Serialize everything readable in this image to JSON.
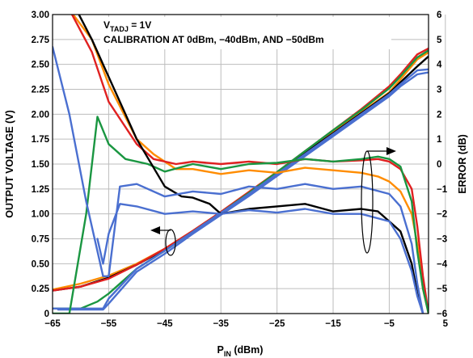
{
  "chart_data": {
    "type": "line",
    "annotation": {
      "line1_main": "V",
      "line1_sub": "TADJ",
      "line1_rest": " = 1V",
      "line2": "CALIBRATION AT 0dBm, −40dBm, AND −50dBm"
    },
    "xlabel_main": "P",
    "xlabel_sub": "IN",
    "xlabel_rest": " (dBm)",
    "ylabel": "OUTPUT VOLTAGE (V)",
    "y2label": "ERROR (dB)",
    "xlim": [
      -65,
      2
    ],
    "ylim": [
      0,
      3
    ],
    "y2lim": [
      -6,
      6
    ],
    "grid": true,
    "x_ticks": [
      -65,
      -55,
      -45,
      -35,
      -25,
      -15,
      -5,
      5
    ],
    "x_tick_labels": [
      "−65",
      "−55",
      "−45",
      "−35",
      "−25",
      "−15",
      "−5",
      "5"
    ],
    "y_ticks": [
      0,
      0.25,
      0.5,
      0.75,
      1.0,
      1.25,
      1.5,
      1.75,
      2.0,
      2.25,
      2.5,
      2.75,
      3.0
    ],
    "y_tick_labels": [
      "0",
      "0.25",
      "0.50",
      "0.75",
      "1.00",
      "1.25",
      "1.50",
      "1.75",
      "2.00",
      "2.25",
      "2.50",
      "2.75",
      "3.00"
    ],
    "y2_ticks": [
      -6,
      -5,
      -4,
      -3,
      -2,
      -1,
      0,
      1,
      2,
      3,
      4,
      5,
      6
    ],
    "y2_tick_labels": [
      "−6",
      "−5",
      "−4",
      "−3",
      "−2",
      "−1",
      "0",
      "1",
      "2",
      "3",
      "4",
      "5",
      "6"
    ],
    "series": [
      {
        "color": "#ff8c00",
        "axis": "left",
        "x": [
          -65,
          -60,
          -55,
          -50,
          -45,
          -40,
          -35,
          -30,
          -25,
          -20,
          -15,
          -10,
          -5,
          -3,
          0,
          2
        ],
        "y": [
          0.24,
          0.3,
          0.38,
          0.5,
          0.65,
          0.83,
          1.02,
          1.22,
          1.42,
          1.62,
          1.82,
          2.02,
          2.22,
          2.35,
          2.55,
          2.62
        ]
      },
      {
        "color": "#000000",
        "axis": "left",
        "x": [
          -65,
          -60,
          -55,
          -50,
          -45,
          -40,
          -35,
          -30,
          -25,
          -20,
          -15,
          -10,
          -5,
          -3,
          0,
          2
        ],
        "y": [
          0.23,
          0.27,
          0.36,
          0.49,
          0.64,
          0.82,
          1.01,
          1.21,
          1.41,
          1.61,
          1.81,
          2.01,
          2.21,
          2.32,
          2.48,
          2.58
        ]
      },
      {
        "color": "#e02020",
        "axis": "left",
        "x": [
          -65,
          -60,
          -55,
          -50,
          -45,
          -40,
          -35,
          -30,
          -25,
          -20,
          -15,
          -10,
          -5,
          -3,
          0,
          2
        ],
        "y": [
          0.23,
          0.27,
          0.35,
          0.49,
          0.65,
          0.83,
          1.02,
          1.22,
          1.42,
          1.63,
          1.84,
          2.05,
          2.28,
          2.4,
          2.6,
          2.66
        ]
      },
      {
        "color": "#1a9641",
        "axis": "left",
        "x": [
          -65,
          -60,
          -57,
          -55,
          -50,
          -45,
          -40,
          -35,
          -30,
          -25,
          -20,
          -15,
          -10,
          -5,
          -3,
          0,
          2
        ],
        "y": [
          0.05,
          0.05,
          0.12,
          0.2,
          0.45,
          0.63,
          0.82,
          1.01,
          1.21,
          1.42,
          1.63,
          1.84,
          2.04,
          2.26,
          2.38,
          2.57,
          2.64
        ]
      },
      {
        "color": "#4a6fd0",
        "axis": "left",
        "x": [
          -65,
          -59,
          -56,
          -55,
          -50,
          -45,
          -40,
          -35,
          -30,
          -25,
          -20,
          -15,
          -10,
          -5,
          -3,
          0,
          2
        ],
        "y": [
          0.05,
          0.05,
          0.05,
          0.15,
          0.45,
          0.63,
          0.82,
          1.01,
          1.2,
          1.4,
          1.6,
          1.8,
          2.0,
          2.2,
          2.3,
          2.44,
          2.45
        ]
      },
      {
        "color": "#4a6fd0",
        "axis": "left",
        "x": [
          -64,
          -59,
          -56,
          -55,
          -50,
          -45,
          -40,
          -35,
          -30,
          -25,
          -20,
          -15,
          -10,
          -5,
          -3,
          0,
          2
        ],
        "y": [
          0.04,
          0.04,
          0.04,
          0.1,
          0.42,
          0.6,
          0.8,
          0.99,
          1.18,
          1.38,
          1.58,
          1.78,
          1.98,
          2.18,
          2.28,
          2.4,
          2.42
        ]
      },
      {
        "color": "#ff8c00",
        "axis": "right",
        "x": [
          -62,
          -58,
          -55,
          -50,
          -47,
          -43,
          -40,
          -35,
          -30,
          -25,
          -20,
          -15,
          -10,
          -7,
          -5,
          -3,
          -1,
          0,
          1,
          2
        ],
        "y": [
          6.2,
          5.0,
          3.2,
          1.0,
          0.4,
          -0.2,
          -0.2,
          -0.4,
          -0.25,
          -0.35,
          -0.15,
          -0.25,
          -0.35,
          -0.5,
          -0.7,
          -1.1,
          -2.0,
          -3.2,
          -5.0,
          -6.0
        ]
      },
      {
        "color": "#e02020",
        "axis": "right",
        "x": [
          -62,
          -58,
          -55,
          -50,
          -47,
          -43,
          -40,
          -35,
          -30,
          -25,
          -20,
          -15,
          -10,
          -7,
          -5,
          -3,
          -1,
          0,
          1,
          2
        ],
        "y": [
          6.2,
          4.5,
          2.5,
          0.8,
          0.2,
          0.0,
          0.1,
          0.0,
          0.1,
          0.0,
          0.2,
          0.1,
          0.15,
          0.2,
          0.1,
          -0.2,
          -1.0,
          -2.5,
          -4.5,
          -6.0
        ]
      },
      {
        "color": "#1a9641",
        "axis": "right",
        "x": [
          -65,
          -62,
          -59,
          -57,
          -55,
          -52,
          -48,
          -45,
          -40,
          -35,
          -30,
          -25,
          -20,
          -15,
          -10,
          -7,
          -5,
          -3,
          -1,
          0,
          1,
          2
        ],
        "y": [
          -6,
          -6,
          -2,
          1.9,
          0.8,
          0.2,
          0.0,
          -0.3,
          0.0,
          -0.2,
          0.0,
          0.05,
          0.2,
          0.1,
          0.2,
          0.3,
          0.2,
          -0.1,
          -1.5,
          -3.5,
          -5.0,
          -6.0
        ]
      },
      {
        "color": "#000000",
        "axis": "right",
        "x": [
          -61,
          -58,
          -55,
          -50,
          -45,
          -42,
          -40,
          -37,
          -35,
          -30,
          -25,
          -20,
          -15,
          -10,
          -7,
          -5,
          -3,
          -1,
          0,
          1
        ],
        "y": [
          6.3,
          5.0,
          3.5,
          1.0,
          -0.9,
          -1.3,
          -1.35,
          -1.6,
          -2.0,
          -1.8,
          -1.7,
          -1.6,
          -1.9,
          -1.8,
          -1.9,
          -2.3,
          -2.7,
          -4.0,
          -5.2,
          -6.0
        ]
      },
      {
        "color": "#4a6fd0",
        "axis": "right",
        "x": [
          -65,
          -62,
          -59,
          -57,
          -56,
          -55,
          -53,
          -50,
          -45,
          -40,
          -35,
          -30,
          -25,
          -20,
          -15,
          -10,
          -5,
          -3,
          -1,
          0,
          1
        ],
        "y": [
          4.7,
          2.0,
          -1.5,
          -3.5,
          -4.5,
          -4.5,
          -0.9,
          -0.8,
          -1.3,
          -1.1,
          -1.2,
          -0.9,
          -1.0,
          -0.8,
          -1.0,
          -0.9,
          -1.2,
          -1.7,
          -3.2,
          -4.8,
          -6.0
        ]
      },
      {
        "color": "#4a6fd0",
        "axis": "right",
        "x": [
          -57,
          -56,
          -55,
          -53,
          -50,
          -45,
          -40,
          -35,
          -30,
          -25,
          -20,
          -15,
          -10,
          -5,
          -3,
          -1,
          0,
          1
        ],
        "y": [
          -3.0,
          -4.0,
          -2.8,
          -1.6,
          -1.7,
          -2.0,
          -1.9,
          -2.0,
          -1.85,
          -1.95,
          -1.8,
          -2.0,
          -2.0,
          -2.3,
          -3.0,
          -4.3,
          -5.3,
          -6.0
        ]
      }
    ]
  }
}
